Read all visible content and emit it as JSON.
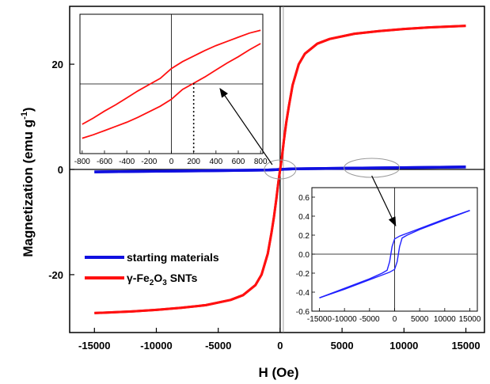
{
  "chart_data": [
    {
      "type": "line",
      "title": "",
      "xlabel": "H (Oe)",
      "ylabel": "Magnetization (emu g",
      "ylabel_sup": "-1",
      "ylabel_end": ")",
      "xlim": [
        -17000,
        16500
      ],
      "ylim": [
        -31,
        31
      ],
      "xticks": [
        -15000,
        -10000,
        -5000,
        0,
        5000,
        10000,
        15000
      ],
      "yticks": [
        -20,
        0,
        20
      ],
      "grid": false,
      "legend_position": "lower-left",
      "series": [
        {
          "name": "starting materials",
          "color": "#1010e0",
          "branches": [
            {
              "x": [
                -15000,
                -10000,
                -5000,
                -1000,
                0,
                1000,
                5000,
                10000,
                15000
              ],
              "y": [
                -0.46,
                -0.35,
                -0.22,
                -0.1,
                0.0,
                0.1,
                0.22,
                0.35,
                0.46
              ]
            },
            {
              "x": [
                15000,
                10000,
                5000,
                1000,
                0,
                -1000,
                -5000,
                -10000,
                -15000
              ],
              "y": [
                0.46,
                0.35,
                0.22,
                0.1,
                0.0,
                -0.1,
                -0.22,
                -0.35,
                -0.46
              ]
            }
          ]
        },
        {
          "name": "γ-Fe2O3 SNTs",
          "name_main": "γ-Fe",
          "name_sub1": "2",
          "name_mid": "O",
          "name_sub2": "3",
          "name_tail": " SNTs",
          "color": "#ff1010",
          "branches": [
            {
              "x": [
                -15000,
                -12000,
                -10000,
                -8000,
                -6000,
                -4000,
                -3000,
                -2000,
                -1500,
                -1000,
                -700,
                -500,
                -300,
                -150,
                0,
                150,
                300,
                500,
                700,
                1000,
                1500,
                2000,
                3000,
                4000,
                6000,
                8000,
                10000,
                12000,
                15000
              ],
              "y": [
                -27.3,
                -27.0,
                -26.7,
                -26.3,
                -25.8,
                -24.8,
                -23.9,
                -22.0,
                -20.0,
                -16.0,
                -12.0,
                -9.0,
                -5.5,
                -2.5,
                0.0,
                2.5,
                5.5,
                9.0,
                12.0,
                16.0,
                20.0,
                22.0,
                23.9,
                24.8,
                25.8,
                26.3,
                26.7,
                27.0,
                27.3
              ]
            },
            {
              "x": [
                15000,
                12000,
                10000,
                8000,
                6000,
                4000,
                3000,
                2000,
                1500,
                1000,
                700,
                500,
                300,
                150,
                0,
                -150,
                -300,
                -500,
                -700,
                -1000,
                -1500,
                -2000,
                -3000,
                -4000,
                -6000,
                -8000,
                -10000,
                -12000,
                -15000
              ],
              "y": [
                27.3,
                27.0,
                26.7,
                26.3,
                25.8,
                24.8,
                23.9,
                22.0,
                20.0,
                16.0,
                12.0,
                9.0,
                5.5,
                2.5,
                0.0,
                -2.5,
                -5.5,
                -9.0,
                -12.0,
                -16.0,
                -20.0,
                -22.0,
                -23.9,
                -24.8,
                -25.8,
                -26.3,
                -26.7,
                -27.0,
                -27.3
              ]
            }
          ]
        }
      ]
    },
    {
      "type": "line",
      "title": "",
      "xlabel": "",
      "ylabel": "",
      "xlim": [
        -820,
        820
      ],
      "ylim": [
        -1,
        1
      ],
      "xticks": [
        -800,
        -600,
        -400,
        -200,
        0,
        200,
        400,
        600,
        800
      ],
      "yticks": [],
      "grid": false,
      "annotation": "dotted line at H = 200 Oe, arrow pointing to origin of main plot",
      "series": [
        {
          "name": "",
          "color": "#ff1010",
          "branches": [
            {
              "x": [
                -800,
                -700,
                -600,
                -500,
                -400,
                -300,
                -200,
                -100,
                0,
                100,
                200,
                300,
                400,
                500,
                600,
                700,
                800
              ],
              "y": [
                -0.78,
                -0.73,
                -0.67,
                -0.61,
                -0.55,
                -0.48,
                -0.4,
                -0.32,
                -0.22,
                -0.08,
                0.01,
                0.1,
                0.2,
                0.3,
                0.39,
                0.49,
                0.58
              ]
            },
            {
              "x": [
                800,
                700,
                600,
                500,
                400,
                300,
                200,
                100,
                0,
                -100,
                -200,
                -300,
                -400,
                -500,
                -600,
                -700,
                -800
              ],
              "y": [
                0.77,
                0.73,
                0.67,
                0.61,
                0.55,
                0.48,
                0.4,
                0.32,
                0.22,
                0.08,
                -0.01,
                -0.1,
                -0.2,
                -0.3,
                -0.39,
                -0.49,
                -0.58
              ]
            }
          ]
        }
      ]
    },
    {
      "type": "line",
      "title": "",
      "xlabel": "",
      "ylabel": "",
      "xlim": [
        -16500,
        16500
      ],
      "ylim": [
        -0.6,
        0.7
      ],
      "xticks": [
        -15000,
        -10000,
        -5000,
        0,
        5000,
        10000,
        15000
      ],
      "yticks": [
        -0.6,
        -0.4,
        -0.2,
        0.0,
        0.2,
        0.4,
        0.6
      ],
      "ytick_labels": [
        "-0.6",
        "-0.4",
        "-0.2",
        "0.0",
        "0.2",
        "0.4",
        "0.6"
      ],
      "grid": false,
      "annotation": "arrow from ellipse on main plot",
      "series": [
        {
          "name": "",
          "color": "#2020ff",
          "branches": [
            {
              "x": [
                -15000,
                -10000,
                -5000,
                -2500,
                -1000,
                0,
                500,
                1000,
                1500,
                2500,
                5000,
                10000,
                15000
              ],
              "y": [
                -0.46,
                -0.37,
                -0.27,
                -0.22,
                -0.19,
                -0.16,
                -0.08,
                0.08,
                0.17,
                0.2,
                0.26,
                0.36,
                0.46
              ]
            },
            {
              "x": [
                15000,
                10000,
                5000,
                2500,
                1000,
                0,
                -500,
                -1000,
                -1500,
                -2500,
                -5000,
                -10000,
                -15000
              ],
              "y": [
                0.46,
                0.37,
                0.27,
                0.22,
                0.19,
                0.16,
                0.08,
                -0.08,
                -0.17,
                -0.2,
                -0.26,
                -0.36,
                -0.46
              ]
            }
          ]
        }
      ]
    }
  ]
}
